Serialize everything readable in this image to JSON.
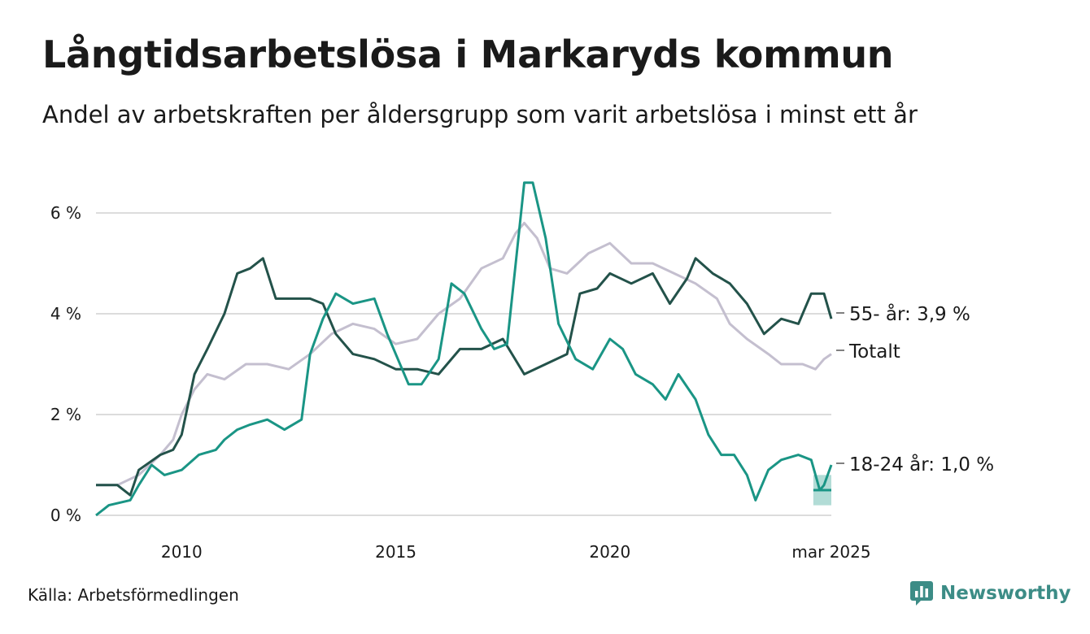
{
  "title": "Långtidsarbetslösa i Markaryds kommun",
  "subtitle": "Andel av arbetskraften per åldersgrupp som varit arbetslösa i minst ett år",
  "source": "Källa: Arbetsförmedlingen",
  "brand": {
    "name": "Newsworthy",
    "icon": "bar-chart-logo-icon"
  },
  "colors": {
    "young": "#1a9585",
    "old": "#23524a",
    "total": "#c4bfcf",
    "band": "#a5d6cf",
    "grid": "#dcdcdc"
  },
  "chart_data": {
    "type": "line",
    "ylim": [
      0,
      7
    ],
    "xlim": [
      2008.0,
      2025.17
    ],
    "y_ticks": [
      {
        "value": 0,
        "label": "0 %"
      },
      {
        "value": 2,
        "label": "2 %"
      },
      {
        "value": 4,
        "label": "4 %"
      },
      {
        "value": 6,
        "label": "6 %"
      }
    ],
    "x_ticks": [
      {
        "value": 2010,
        "label": "2010"
      },
      {
        "value": 2015,
        "label": "2015"
      },
      {
        "value": 2020,
        "label": "2020"
      },
      {
        "value": 2025.17,
        "label": "mar 2025"
      }
    ],
    "series": [
      {
        "id": "total",
        "name": "Totalt",
        "end_label": "Totalt",
        "points": [
          [
            2008.0,
            0.6
          ],
          [
            2008.5,
            0.6
          ],
          [
            2009.0,
            0.8
          ],
          [
            2009.5,
            1.2
          ],
          [
            2009.8,
            1.5
          ],
          [
            2010.0,
            2.0
          ],
          [
            2010.3,
            2.5
          ],
          [
            2010.6,
            2.8
          ],
          [
            2011.0,
            2.7
          ],
          [
            2011.5,
            3.0
          ],
          [
            2012.0,
            3.0
          ],
          [
            2012.5,
            2.9
          ],
          [
            2013.0,
            3.2
          ],
          [
            2013.5,
            3.6
          ],
          [
            2014.0,
            3.8
          ],
          [
            2014.5,
            3.7
          ],
          [
            2015.0,
            3.4
          ],
          [
            2015.5,
            3.5
          ],
          [
            2016.0,
            4.0
          ],
          [
            2016.5,
            4.3
          ],
          [
            2017.0,
            4.9
          ],
          [
            2017.5,
            5.1
          ],
          [
            2017.8,
            5.6
          ],
          [
            2018.0,
            5.8
          ],
          [
            2018.3,
            5.5
          ],
          [
            2018.6,
            4.9
          ],
          [
            2019.0,
            4.8
          ],
          [
            2019.5,
            5.2
          ],
          [
            2020.0,
            5.4
          ],
          [
            2020.5,
            5.0
          ],
          [
            2021.0,
            5.0
          ],
          [
            2021.5,
            4.8
          ],
          [
            2022.0,
            4.6
          ],
          [
            2022.5,
            4.3
          ],
          [
            2022.8,
            3.8
          ],
          [
            2023.2,
            3.5
          ],
          [
            2023.7,
            3.2
          ],
          [
            2024.0,
            3.0
          ],
          [
            2024.5,
            3.0
          ],
          [
            2024.8,
            2.9
          ],
          [
            2025.0,
            3.1
          ],
          [
            2025.17,
            3.2
          ]
        ]
      },
      {
        "id": "old",
        "name": "55- år",
        "end_label": "55- år: 3,9 %",
        "points": [
          [
            2008.0,
            0.6
          ],
          [
            2008.5,
            0.6
          ],
          [
            2008.8,
            0.4
          ],
          [
            2009.0,
            0.9
          ],
          [
            2009.5,
            1.2
          ],
          [
            2009.8,
            1.3
          ],
          [
            2010.0,
            1.6
          ],
          [
            2010.3,
            2.8
          ],
          [
            2010.6,
            3.3
          ],
          [
            2011.0,
            4.0
          ],
          [
            2011.3,
            4.8
          ],
          [
            2011.6,
            4.9
          ],
          [
            2011.9,
            5.1
          ],
          [
            2012.2,
            4.3
          ],
          [
            2012.6,
            4.3
          ],
          [
            2013.0,
            4.3
          ],
          [
            2013.3,
            4.2
          ],
          [
            2013.6,
            3.6
          ],
          [
            2014.0,
            3.2
          ],
          [
            2014.5,
            3.1
          ],
          [
            2015.0,
            2.9
          ],
          [
            2015.5,
            2.9
          ],
          [
            2016.0,
            2.8
          ],
          [
            2016.5,
            3.3
          ],
          [
            2017.0,
            3.3
          ],
          [
            2017.5,
            3.5
          ],
          [
            2018.0,
            2.8
          ],
          [
            2018.5,
            3.0
          ],
          [
            2019.0,
            3.2
          ],
          [
            2019.3,
            4.4
          ],
          [
            2019.7,
            4.5
          ],
          [
            2020.0,
            4.8
          ],
          [
            2020.5,
            4.6
          ],
          [
            2021.0,
            4.8
          ],
          [
            2021.4,
            4.2
          ],
          [
            2021.8,
            4.7
          ],
          [
            2022.0,
            5.1
          ],
          [
            2022.4,
            4.8
          ],
          [
            2022.8,
            4.6
          ],
          [
            2023.2,
            4.2
          ],
          [
            2023.6,
            3.6
          ],
          [
            2024.0,
            3.9
          ],
          [
            2024.4,
            3.8
          ],
          [
            2024.7,
            4.4
          ],
          [
            2025.0,
            4.4
          ],
          [
            2025.17,
            3.9
          ]
        ]
      },
      {
        "id": "young",
        "name": "18-24 år",
        "end_label": "18-24 år: 1,0 %",
        "points": [
          [
            2008.0,
            0.0
          ],
          [
            2008.3,
            0.2
          ],
          [
            2008.8,
            0.3
          ],
          [
            2009.0,
            0.6
          ],
          [
            2009.3,
            1.0
          ],
          [
            2009.6,
            0.8
          ],
          [
            2010.0,
            0.9
          ],
          [
            2010.4,
            1.2
          ],
          [
            2010.8,
            1.3
          ],
          [
            2011.0,
            1.5
          ],
          [
            2011.3,
            1.7
          ],
          [
            2011.6,
            1.8
          ],
          [
            2012.0,
            1.9
          ],
          [
            2012.4,
            1.7
          ],
          [
            2012.8,
            1.9
          ],
          [
            2013.0,
            3.2
          ],
          [
            2013.3,
            3.9
          ],
          [
            2013.6,
            4.4
          ],
          [
            2014.0,
            4.2
          ],
          [
            2014.5,
            4.3
          ],
          [
            2014.8,
            3.6
          ],
          [
            2015.0,
            3.2
          ],
          [
            2015.3,
            2.6
          ],
          [
            2015.6,
            2.6
          ],
          [
            2016.0,
            3.1
          ],
          [
            2016.3,
            4.6
          ],
          [
            2016.6,
            4.4
          ],
          [
            2017.0,
            3.7
          ],
          [
            2017.3,
            3.3
          ],
          [
            2017.6,
            3.4
          ],
          [
            2017.8,
            5.0
          ],
          [
            2018.0,
            6.6
          ],
          [
            2018.2,
            6.6
          ],
          [
            2018.5,
            5.5
          ],
          [
            2018.8,
            3.8
          ],
          [
            2019.2,
            3.1
          ],
          [
            2019.6,
            2.9
          ],
          [
            2020.0,
            3.5
          ],
          [
            2020.3,
            3.3
          ],
          [
            2020.6,
            2.8
          ],
          [
            2021.0,
            2.6
          ],
          [
            2021.3,
            2.3
          ],
          [
            2021.6,
            2.8
          ],
          [
            2022.0,
            2.3
          ],
          [
            2022.3,
            1.6
          ],
          [
            2022.6,
            1.2
          ],
          [
            2022.9,
            1.2
          ],
          [
            2023.2,
            0.8
          ],
          [
            2023.4,
            0.3
          ],
          [
            2023.7,
            0.9
          ],
          [
            2024.0,
            1.1
          ],
          [
            2024.4,
            1.2
          ],
          [
            2024.7,
            1.1
          ],
          [
            2024.9,
            0.5
          ],
          [
            2025.0,
            0.6
          ],
          [
            2025.17,
            1.0
          ]
        ]
      }
    ],
    "uncertainty_band": {
      "series": "young",
      "x": [
        2024.75,
        2025.17
      ],
      "lower": [
        0.2,
        0.2
      ],
      "upper": [
        0.8,
        0.8
      ],
      "median": [
        0.5,
        0.5
      ]
    }
  }
}
